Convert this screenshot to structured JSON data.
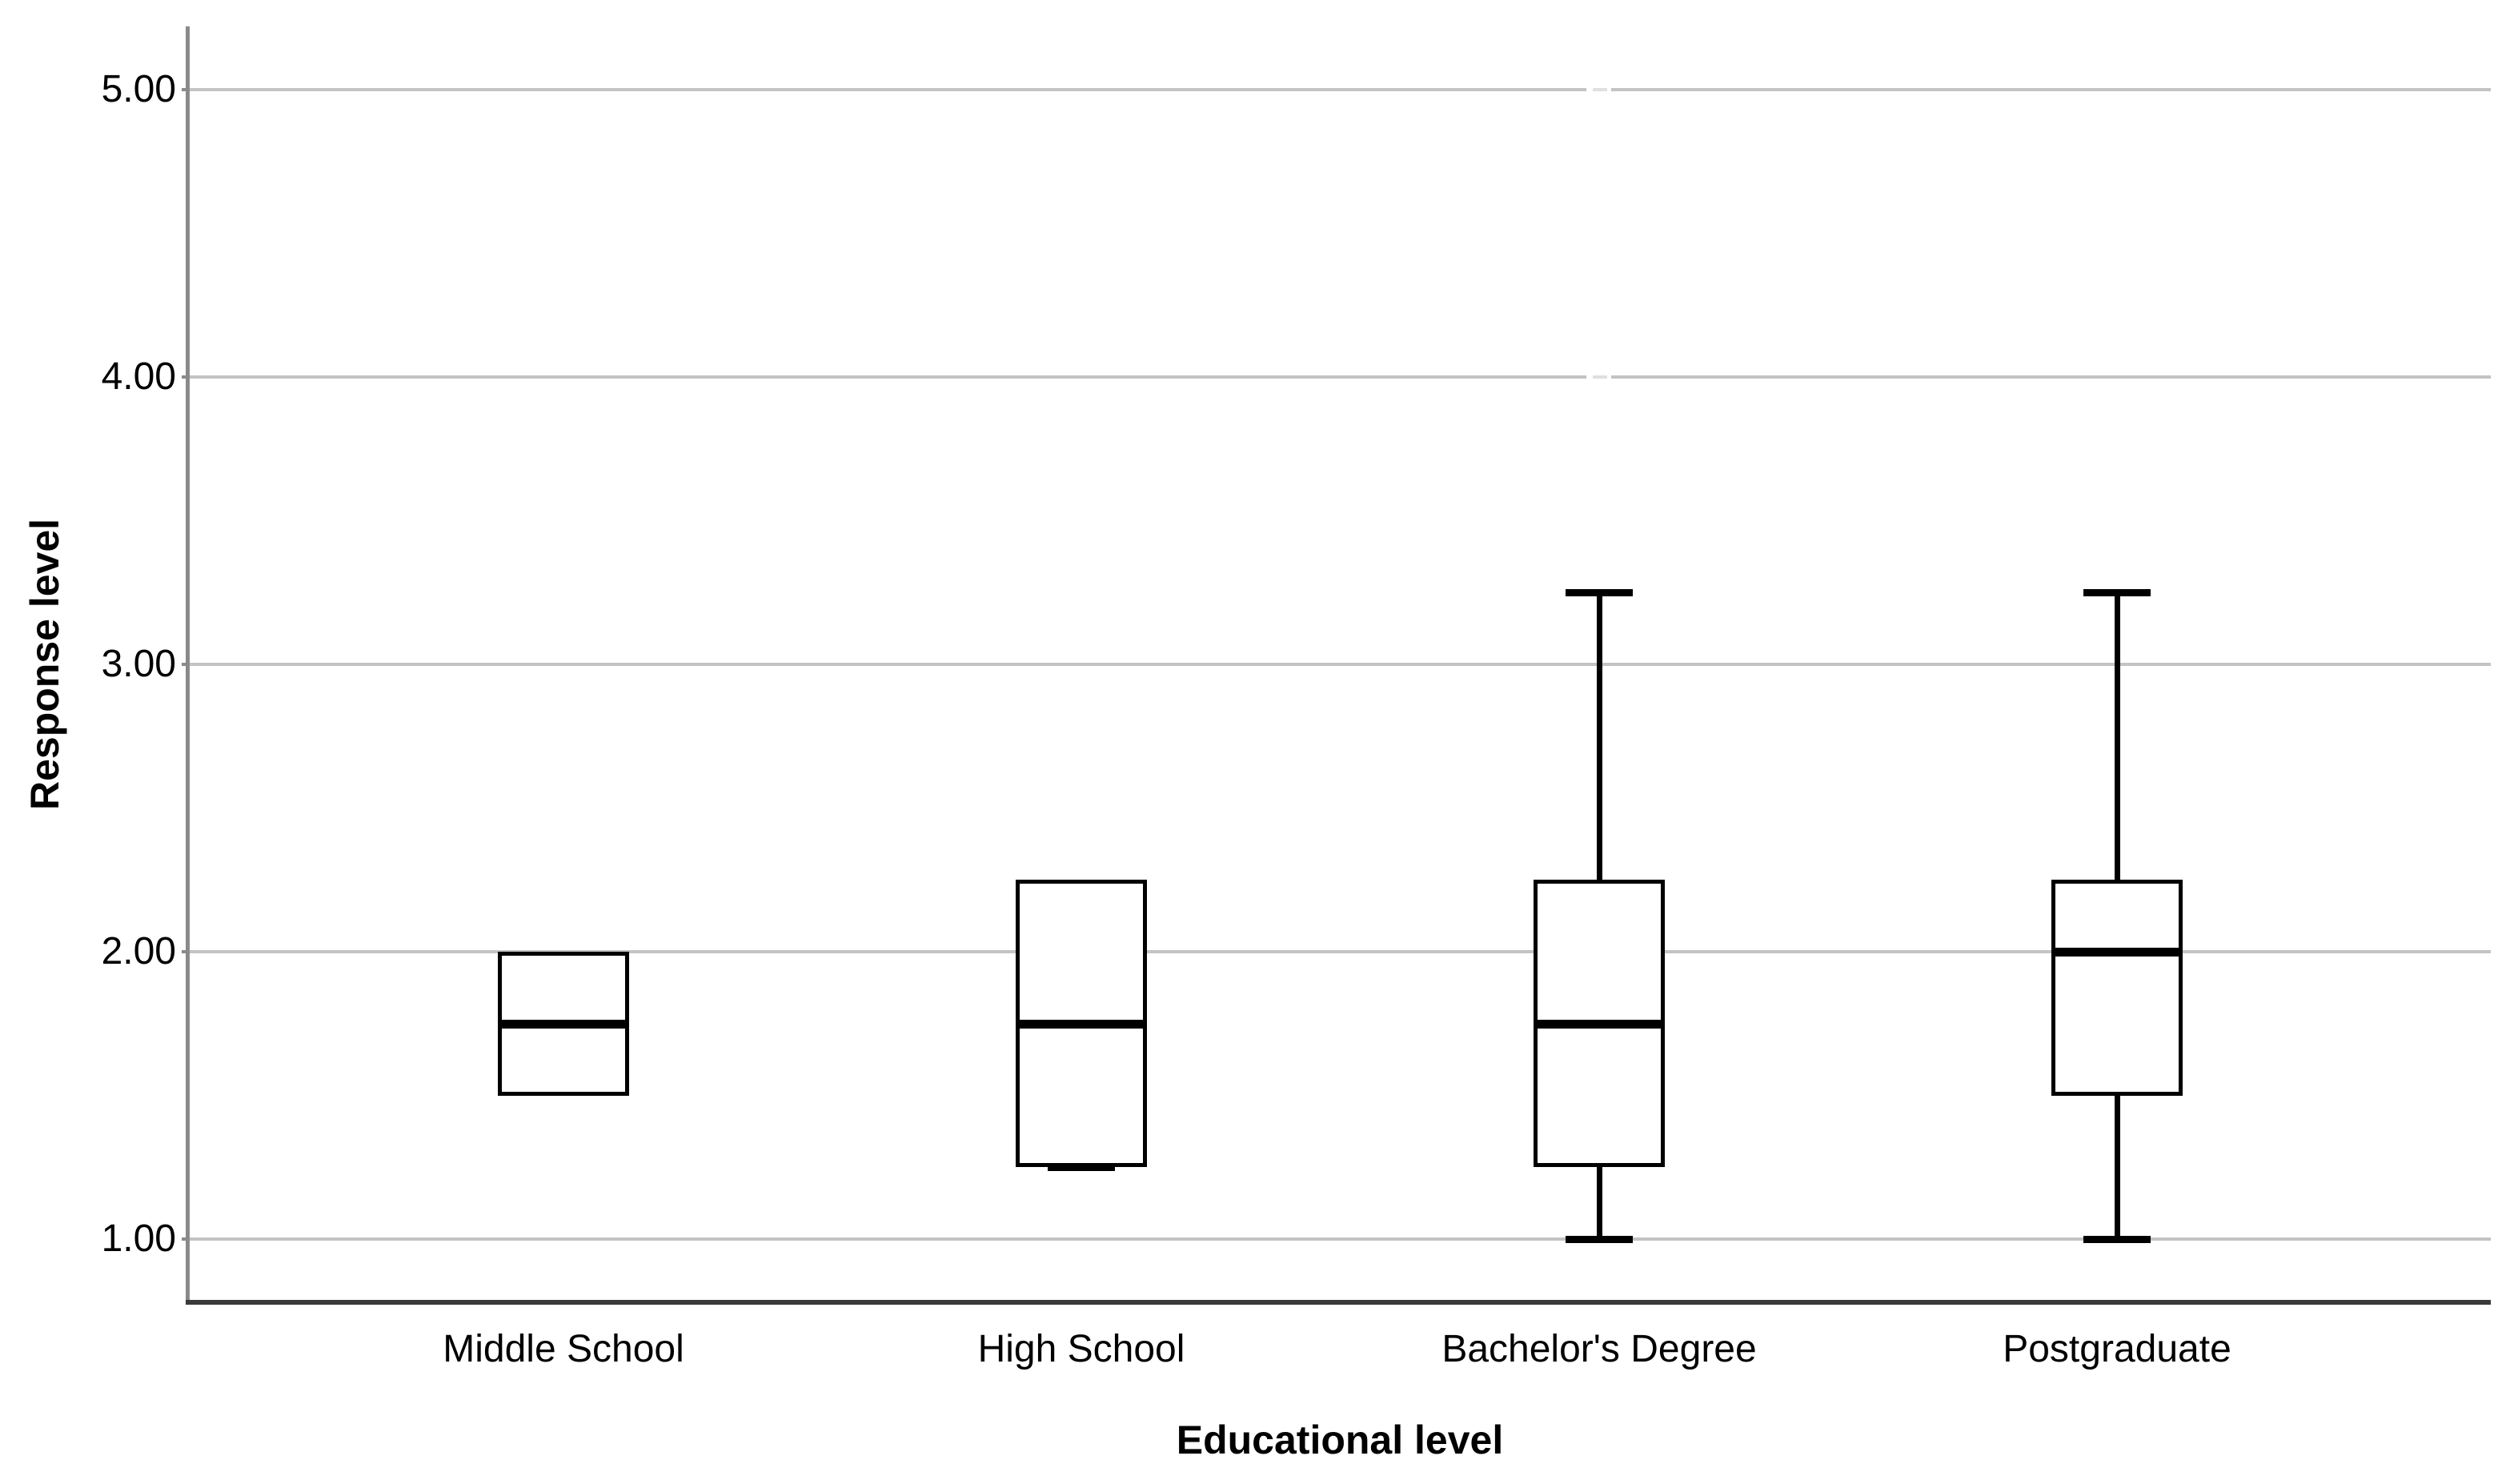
{
  "chart_data": {
    "type": "boxplot",
    "title": "",
    "xlabel": "Educational level",
    "ylabel": "Response level",
    "categories": [
      "Middle School",
      "High School",
      "Bachelor's Degree",
      "Postgraduate"
    ],
    "y_ticks": [
      {
        "value": 5.0,
        "label": "5.00"
      },
      {
        "value": 4.0,
        "label": "4.00"
      },
      {
        "value": 3.0,
        "label": "3.00"
      },
      {
        "value": 2.0,
        "label": "2.00"
      },
      {
        "value": 1.0,
        "label": "1.00"
      }
    ],
    "ylim": [
      0.78,
      5.22
    ],
    "grid": true,
    "legend": false,
    "series": [
      {
        "category": "Middle School",
        "q1": 1.5,
        "median": 1.75,
        "q3": 2.0,
        "whisker_low": null,
        "whisker_high": null
      },
      {
        "category": "High School",
        "q1": 1.25,
        "median": 1.75,
        "q3": 2.25,
        "whisker_low": 1.25,
        "whisker_high": null
      },
      {
        "category": "Bachelor's Degree",
        "q1": 1.25,
        "median": 1.75,
        "q3": 2.25,
        "whisker_low": 1.0,
        "whisker_high": 3.25
      },
      {
        "category": "Postgraduate",
        "q1": 1.5,
        "median": 2.0,
        "q3": 2.25,
        "whisker_low": 1.0,
        "whisker_high": 3.25
      }
    ],
    "gridline_gaps": {
      "tick_values": [
        5.0,
        4.0
      ],
      "x_fraction_start": 0.607,
      "x_fraction_end": 0.618,
      "dash_fraction_start": 0.61,
      "dash_fraction_end": 0.616
    },
    "colors": {
      "background": "#ffffff",
      "box_border": "#000000",
      "box_fill": "#ffffff",
      "median": "#000000",
      "whisker": "#000000",
      "gridline": "#c3c3c3",
      "gridline_gap_dash": "#dfdfdf",
      "y_axis_line": "#8a8a8a",
      "x_axis_line": "#3a3a3a",
      "text": "#000000"
    }
  }
}
